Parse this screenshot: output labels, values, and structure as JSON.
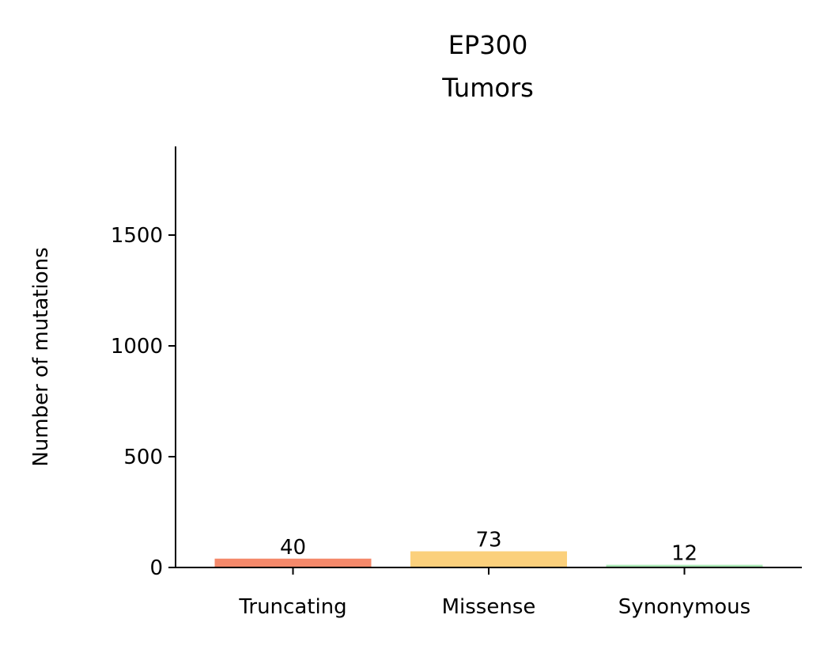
{
  "chart_data": {
    "type": "bar",
    "title": "EP300",
    "subtitle": "Tumors",
    "xlabel": "",
    "ylabel": "Number of mutations",
    "categories": [
      "Truncating",
      "Missense",
      "Synonymous"
    ],
    "values": [
      40,
      73,
      12
    ],
    "data_labels": [
      "40",
      "73",
      "12"
    ],
    "colors": [
      "#F4896B",
      "#FBD07C",
      "#A9E8B4"
    ],
    "ylim": [
      0,
      1900
    ],
    "yticks": [
      0,
      500,
      1000,
      1500
    ],
    "ytick_labels": [
      "0",
      "500",
      "1000",
      "1500"
    ],
    "grid": false,
    "legend": "none"
  }
}
